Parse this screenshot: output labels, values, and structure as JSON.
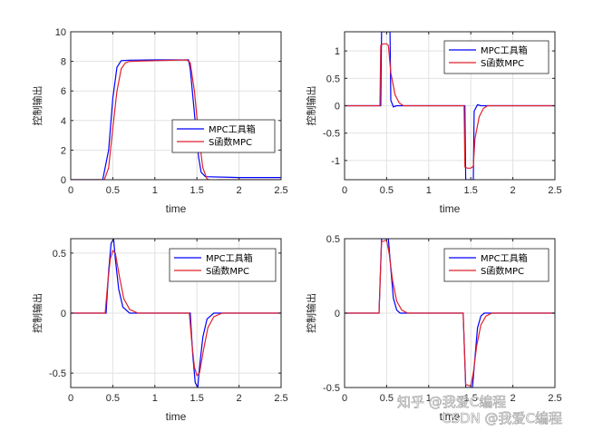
{
  "colors": {
    "mpc": "#0000ff",
    "sfunc": "#e0202a",
    "grid": "#e2e2e2",
    "axis": "#262626"
  },
  "watermark": "知乎 @我爱C编程",
  "watermark2": "CSDN @我爱C编程",
  "chart_data": [
    {
      "type": "line",
      "xlabel": "time",
      "ylabel": "控制输出",
      "xlim": [
        0,
        2.5
      ],
      "ylim": [
        0,
        10
      ],
      "xticks": [
        0,
        0.5,
        1,
        1.5,
        2,
        2.5
      ],
      "yticks": [
        0,
        2,
        4,
        6,
        8,
        10
      ],
      "grid": true,
      "legend": "middle-right",
      "series": [
        {
          "name": "MPC工具箱",
          "x": [
            0,
            0.38,
            0.45,
            0.5,
            0.55,
            0.6,
            0.7,
            1.0,
            1.4,
            1.42,
            1.47,
            1.52,
            1.55,
            1.6,
            2.0,
            2.5
          ],
          "y": [
            0,
            0,
            2.0,
            5.5,
            7.6,
            8.05,
            8.08,
            8.1,
            8.1,
            7.5,
            4.5,
            1.5,
            0.5,
            0.2,
            0.15,
            0.15
          ]
        },
        {
          "name": "S函数MPC",
          "x": [
            0,
            0.4,
            0.45,
            0.5,
            0.55,
            0.6,
            0.65,
            0.7,
            1.0,
            1.38,
            1.42,
            1.47,
            1.52,
            1.57,
            1.62,
            1.67,
            1.75,
            2.5
          ],
          "y": [
            0,
            0,
            0.8,
            3.5,
            6.0,
            7.5,
            7.9,
            8.0,
            8.05,
            8.1,
            7.9,
            6.0,
            3.0,
            0.8,
            0.05,
            -0.05,
            0,
            0
          ]
        }
      ]
    },
    {
      "type": "line",
      "xlabel": "time",
      "ylabel": "控制输出",
      "xlim": [
        0,
        2.5
      ],
      "ylim": [
        -1.35,
        1.35
      ],
      "xticks": [
        0,
        0.5,
        1,
        1.5,
        2,
        2.5
      ],
      "yticks": [
        -1,
        -0.5,
        0,
        0.5,
        1
      ],
      "grid": true,
      "legend": "top-right",
      "series": [
        {
          "name": "MPC工具箱",
          "x": [
            0,
            0.43,
            0.44,
            0.54,
            0.55,
            0.58,
            0.62,
            1.43,
            1.44,
            1.53,
            1.54,
            1.58,
            1.62,
            2.5
          ],
          "y": [
            0,
            0,
            1.35,
            1.35,
            0.1,
            -0.02,
            0,
            0,
            -1.35,
            -1.35,
            -0.1,
            0.02,
            0,
            0
          ]
        },
        {
          "name": "S函数MPC",
          "x": [
            0,
            0.42,
            0.43,
            0.46,
            0.5,
            0.52,
            0.55,
            0.6,
            0.65,
            0.7,
            1.42,
            1.43,
            1.46,
            1.5,
            1.53,
            1.55,
            1.6,
            1.65,
            1.7,
            2.5
          ],
          "y": [
            0,
            0,
            1.1,
            1.13,
            1.13,
            1.1,
            0.6,
            0.2,
            0.05,
            0,
            0,
            -1.12,
            -1.14,
            -1.14,
            -1.1,
            -0.6,
            -0.2,
            -0.05,
            0,
            0
          ]
        }
      ]
    },
    {
      "type": "line",
      "xlabel": "time",
      "ylabel": "控制输出",
      "xlim": [
        0,
        2.5
      ],
      "ylim": [
        -0.62,
        0.62
      ],
      "xticks": [
        0,
        0.5,
        1,
        1.5,
        2,
        2.5
      ],
      "yticks": [
        -0.5,
        0,
        0.5
      ],
      "grid": true,
      "legend": "top-right",
      "series": [
        {
          "name": "MPC工具箱",
          "x": [
            0,
            0.42,
            0.45,
            0.48,
            0.51,
            0.53,
            0.57,
            0.62,
            0.7,
            1.42,
            1.45,
            1.48,
            1.51,
            1.53,
            1.57,
            1.62,
            1.7,
            2.5
          ],
          "y": [
            0,
            0,
            0.35,
            0.58,
            0.62,
            0.45,
            0.2,
            0.05,
            0,
            0,
            -0.35,
            -0.58,
            -0.62,
            -0.45,
            -0.2,
            -0.05,
            0,
            0
          ]
        },
        {
          "name": "S函数MPC",
          "x": [
            0,
            0.41,
            0.44,
            0.47,
            0.5,
            0.53,
            0.58,
            0.63,
            0.7,
            0.8,
            1.41,
            1.44,
            1.47,
            1.5,
            1.53,
            1.58,
            1.63,
            1.7,
            1.8,
            2.5
          ],
          "y": [
            0,
            0,
            0.25,
            0.45,
            0.52,
            0.5,
            0.3,
            0.12,
            0.03,
            0,
            0,
            -0.25,
            -0.45,
            -0.52,
            -0.5,
            -0.3,
            -0.12,
            -0.03,
            0,
            0
          ]
        }
      ]
    },
    {
      "type": "line",
      "xlabel": "time",
      "ylabel": "控制输出",
      "xlim": [
        0,
        2.5
      ],
      "ylim": [
        -0.5,
        0.5
      ],
      "xticks": [
        0,
        0.5,
        1,
        1.5,
        2,
        2.5
      ],
      "yticks": [
        -0.5,
        0,
        0.5
      ],
      "grid": true,
      "legend": "top-right",
      "series": [
        {
          "name": "MPC工具箱",
          "x": [
            0,
            0.41,
            0.44,
            0.52,
            0.55,
            0.58,
            0.62,
            0.66,
            1.41,
            1.44,
            1.52,
            1.55,
            1.58,
            1.62,
            1.66,
            2.5
          ],
          "y": [
            0,
            0,
            0.5,
            0.5,
            0.3,
            0.1,
            0.02,
            0,
            0,
            -0.5,
            -0.5,
            -0.3,
            -0.1,
            -0.02,
            0,
            0
          ]
        },
        {
          "name": "S函数MPC",
          "x": [
            0,
            0.41,
            0.44,
            0.5,
            0.53,
            0.57,
            0.62,
            0.68,
            0.75,
            1.41,
            1.44,
            1.5,
            1.53,
            1.57,
            1.62,
            1.68,
            1.75,
            2.5
          ],
          "y": [
            0,
            0,
            0.48,
            0.49,
            0.4,
            0.22,
            0.08,
            0.02,
            0,
            0,
            -0.48,
            -0.49,
            -0.4,
            -0.22,
            -0.08,
            -0.02,
            0,
            0
          ]
        }
      ]
    }
  ]
}
